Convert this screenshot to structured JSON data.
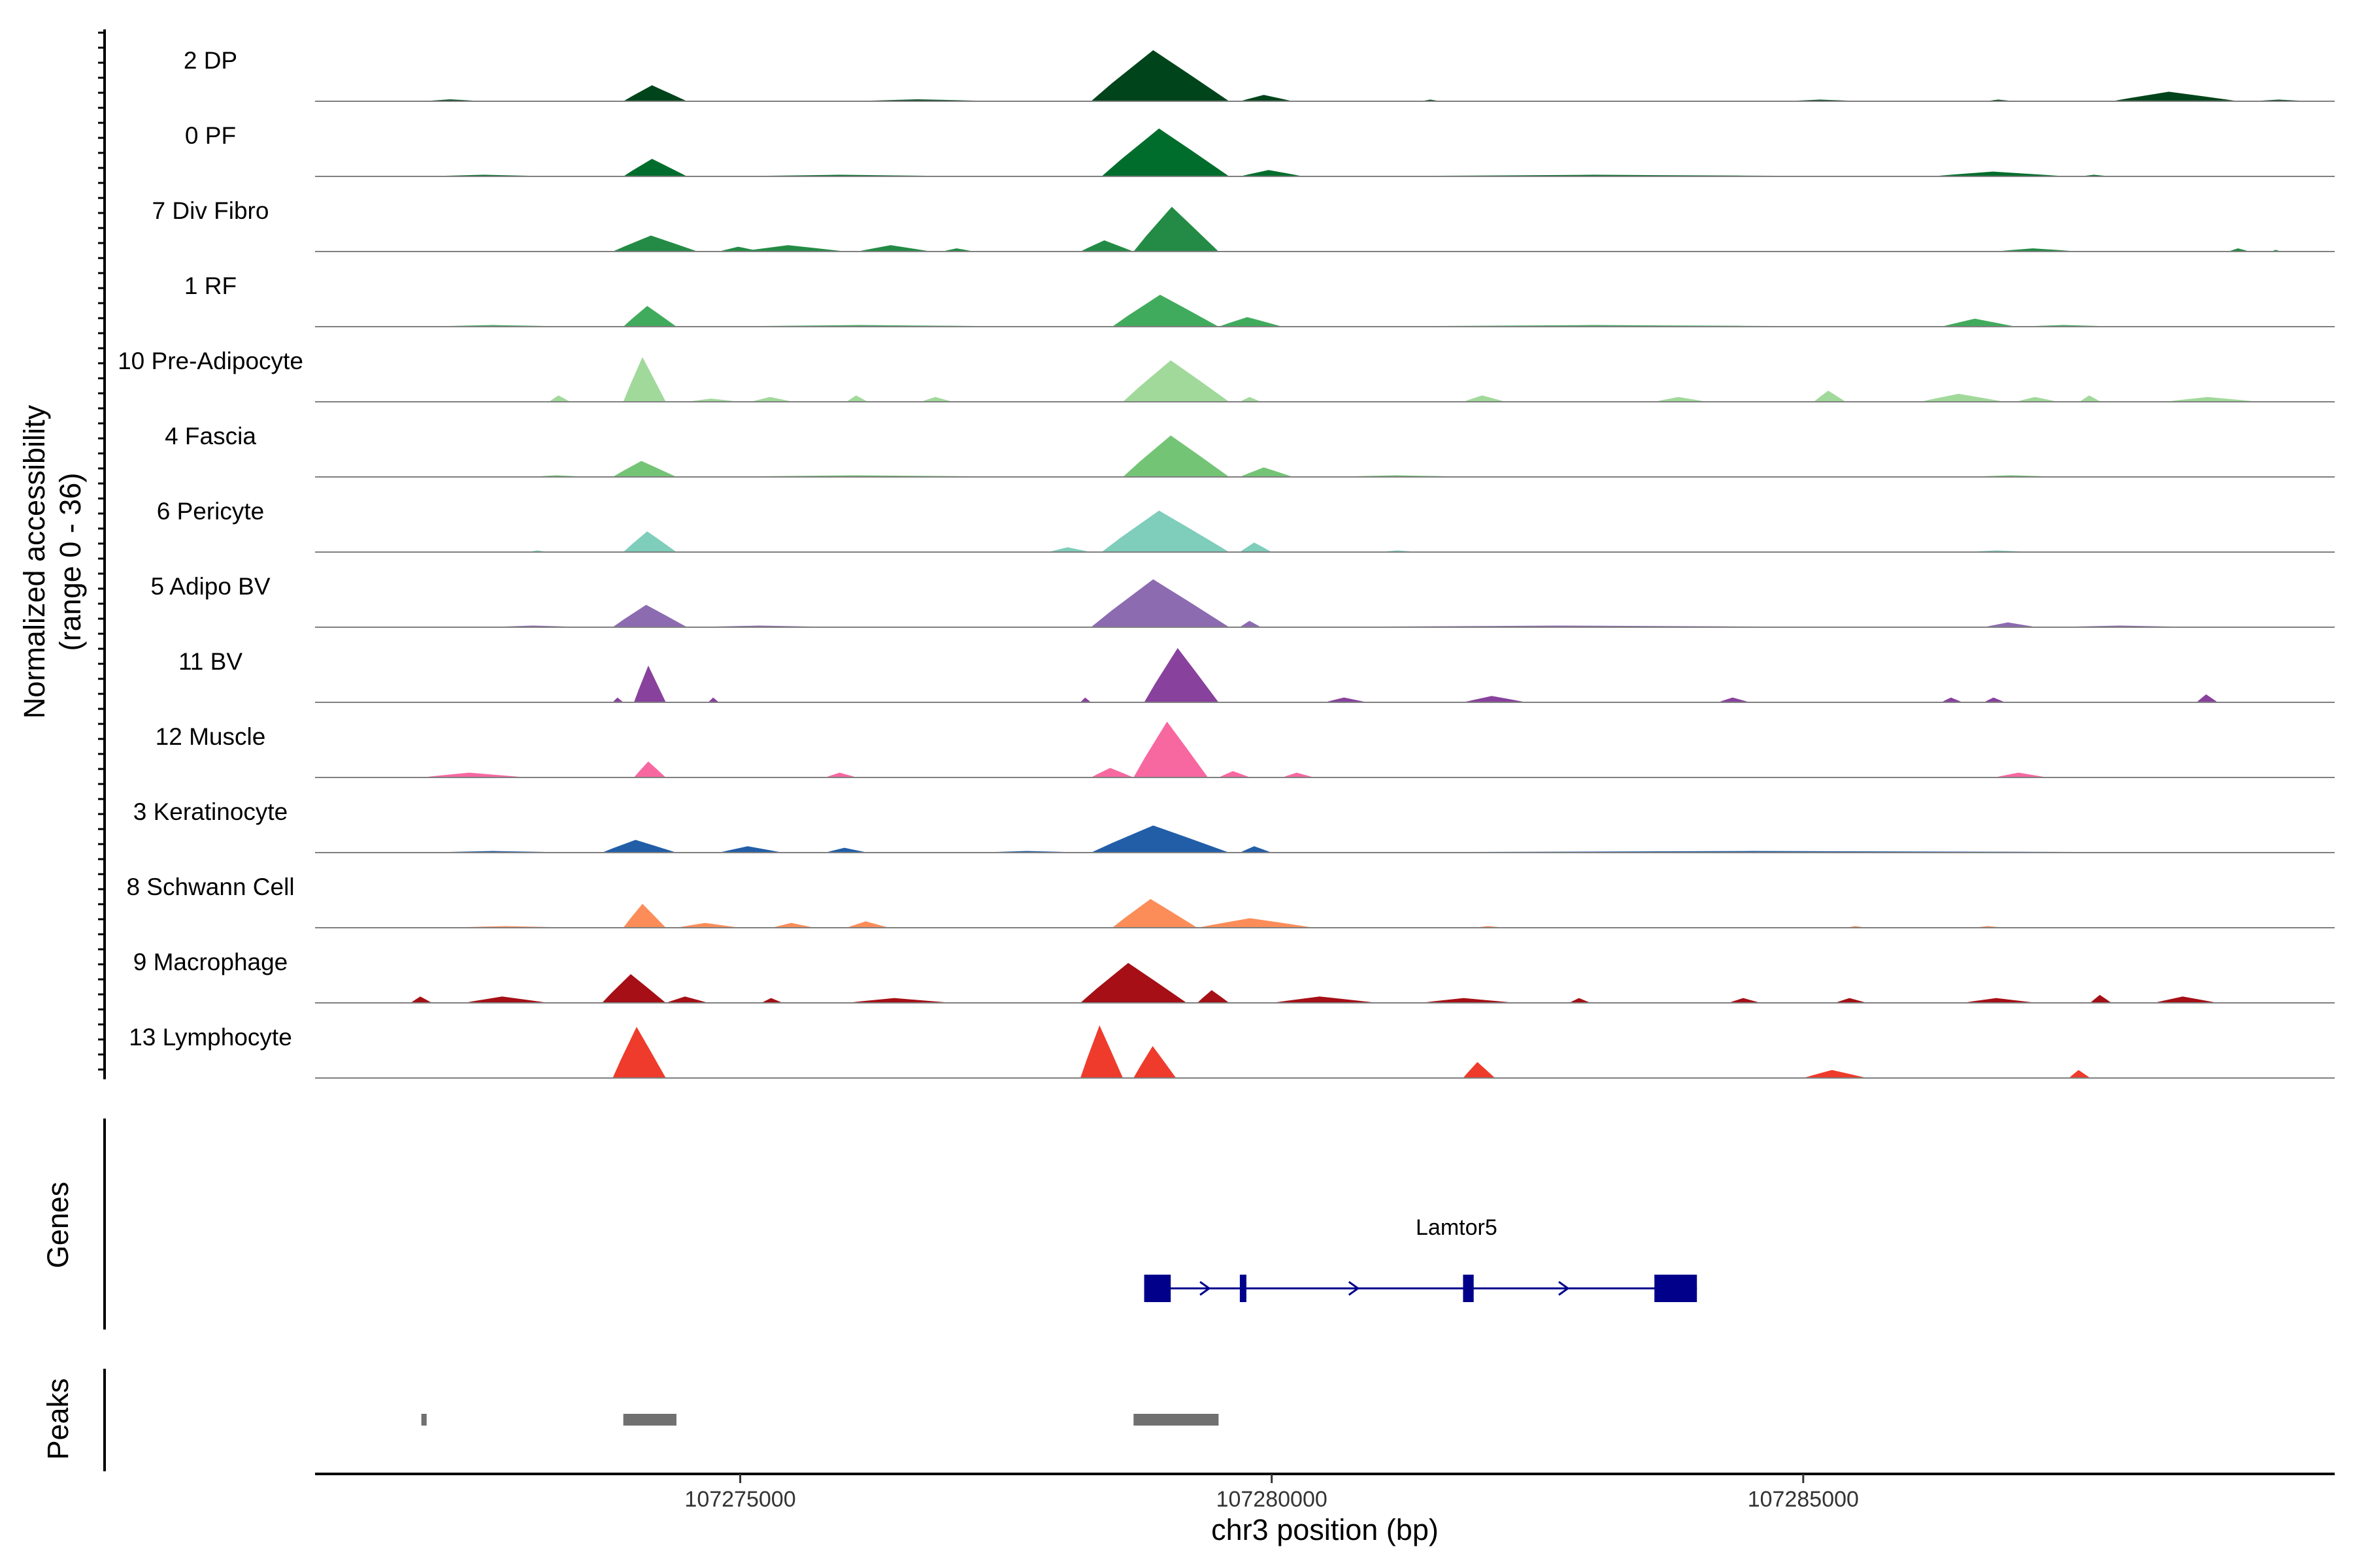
{
  "chart_data": {
    "type": "area",
    "ylabel": "Normalized accessibility",
    "ylabel_range": "(range 0 - 36)",
    "ylim": [
      0,
      36
    ],
    "xlabel": "chr3 position (bp)",
    "xlim": [
      107271000,
      107290000
    ],
    "xticks": [
      107275000,
      107280000,
      107285000
    ],
    "xtick_labels": [
      "107275000",
      "107280000",
      "107285000"
    ],
    "tracks": [
      {
        "name": "2 DP",
        "color": "#00441b",
        "peaks": [
          [
            107272000,
            107272600,
            1.2
          ],
          [
            107273900,
            107274500,
            10
          ],
          [
            107276000,
            107277500,
            1.2
          ],
          [
            107278300,
            107279600,
            32
          ],
          [
            107279700,
            107280200,
            4
          ],
          [
            107281400,
            107281600,
            1
          ],
          [
            107284800,
            107285600,
            1
          ],
          [
            107286700,
            107287000,
            1
          ],
          [
            107287900,
            107289100,
            6
          ],
          [
            107289200,
            107289800,
            1
          ]
        ]
      },
      {
        "name": "0 PF",
        "color": "#006d2c",
        "peaks": [
          [
            107272000,
            107273300,
            1
          ],
          [
            107273900,
            107274500,
            11
          ],
          [
            107274800,
            107277300,
            1
          ],
          [
            107278400,
            107279600,
            30
          ],
          [
            107279700,
            107280300,
            4
          ],
          [
            107280600,
            107286000,
            1
          ],
          [
            107286200,
            107287500,
            3
          ],
          [
            107287600,
            107287900,
            1
          ]
        ]
      },
      {
        "name": "7 Div Fibro",
        "color": "#238b45",
        "peaks": [
          [
            107273800,
            107274600,
            10
          ],
          [
            107274800,
            107275200,
            3
          ],
          [
            107275000,
            107276000,
            4
          ],
          [
            107276100,
            107276800,
            4
          ],
          [
            107276900,
            107277200,
            2
          ],
          [
            107278200,
            107278700,
            7
          ],
          [
            107278700,
            107279500,
            28
          ],
          [
            107286800,
            107287600,
            2
          ],
          [
            107289000,
            107289200,
            2
          ],
          [
            107289400,
            107289500,
            1
          ]
        ]
      },
      {
        "name": "1 RF",
        "color": "#41ab5d",
        "peaks": [
          [
            107272000,
            107273500,
            1
          ],
          [
            107273900,
            107274400,
            13
          ],
          [
            107274600,
            107278000,
            1
          ],
          [
            107278500,
            107279500,
            20
          ],
          [
            107279500,
            107280100,
            6
          ],
          [
            107280600,
            107286000,
            1
          ],
          [
            107286300,
            107287000,
            5
          ],
          [
            107287000,
            107288000,
            1
          ]
        ]
      },
      {
        "name": "10 Pre-Adipocyte",
        "color": "#a1d99b",
        "peaks": [
          [
            107273200,
            107273400,
            4
          ],
          [
            107273900,
            107274300,
            28
          ],
          [
            107274500,
            107275000,
            2
          ],
          [
            107275100,
            107275500,
            3
          ],
          [
            107276000,
            107276200,
            4
          ],
          [
            107276700,
            107277000,
            3
          ],
          [
            107278600,
            107279600,
            26
          ],
          [
            107279700,
            107279900,
            3
          ],
          [
            107281800,
            107282200,
            4
          ],
          [
            107283600,
            107284100,
            3
          ],
          [
            107285100,
            107285400,
            7
          ],
          [
            107286100,
            107286900,
            5
          ],
          [
            107287000,
            107287400,
            3
          ],
          [
            107287600,
            107287800,
            4
          ],
          [
            107288400,
            107289300,
            3
          ]
        ]
      },
      {
        "name": "4 Fascia",
        "color": "#74c476",
        "peaks": [
          [
            107273000,
            107273600,
            1
          ],
          [
            107273800,
            107274400,
            10
          ],
          [
            107274500,
            107278000,
            1
          ],
          [
            107278600,
            107279600,
            26
          ],
          [
            107279700,
            107280200,
            6
          ],
          [
            107280500,
            107282000,
            1
          ],
          [
            107286500,
            107287500,
            1
          ]
        ]
      },
      {
        "name": "6 Pericyte",
        "color": "#7fcdbb",
        "peaks": [
          [
            107273000,
            107273200,
            1
          ],
          [
            107273900,
            107274400,
            13
          ],
          [
            107277900,
            107278300,
            3
          ],
          [
            107278400,
            107279600,
            26
          ],
          [
            107279700,
            107280000,
            6
          ],
          [
            107281000,
            107281400,
            1
          ],
          [
            107286500,
            107287200,
            1
          ]
        ]
      },
      {
        "name": "5 Adipo BV",
        "color": "#8c6bb1",
        "peaks": [
          [
            107272600,
            107273600,
            1
          ],
          [
            107273800,
            107274500,
            14
          ],
          [
            107274500,
            107276000,
            1
          ],
          [
            107278300,
            107279600,
            30
          ],
          [
            107279700,
            107279900,
            4
          ],
          [
            107280000,
            107286000,
            1
          ],
          [
            107286700,
            107287200,
            3
          ],
          [
            107287300,
            107288800,
            1
          ]
        ]
      },
      {
        "name": "11 BV",
        "color": "#88419d",
        "peaks": [
          [
            107273800,
            107273900,
            3
          ],
          [
            107274000,
            107274300,
            23
          ],
          [
            107274700,
            107274800,
            3
          ],
          [
            107278200,
            107278300,
            3
          ],
          [
            107278800,
            107279500,
            34
          ],
          [
            107280500,
            107280900,
            3
          ],
          [
            107281800,
            107282400,
            4
          ],
          [
            107284200,
            107284500,
            3
          ],
          [
            107286300,
            107286500,
            3
          ],
          [
            107286700,
            107286900,
            3
          ],
          [
            107288700,
            107288900,
            5
          ]
        ]
      },
      {
        "name": "12 Muscle",
        "color": "#f768a1",
        "peaks": [
          [
            107272000,
            107273000,
            3
          ],
          [
            107274000,
            107274300,
            10
          ],
          [
            107275800,
            107276100,
            3
          ],
          [
            107278300,
            107278700,
            6
          ],
          [
            107278700,
            107279400,
            35
          ],
          [
            107279500,
            107279800,
            4
          ],
          [
            107280100,
            107280400,
            3
          ],
          [
            107286800,
            107287300,
            3
          ]
        ]
      },
      {
        "name": "3 Keratinocyte",
        "color": "#225ea8",
        "peaks": [
          [
            107272000,
            107273500,
            1
          ],
          [
            107273700,
            107274400,
            8
          ],
          [
            107274800,
            107275400,
            4
          ],
          [
            107275800,
            107276200,
            3
          ],
          [
            107277200,
            107278300,
            1
          ],
          [
            107278300,
            107279600,
            17
          ],
          [
            107279700,
            107280000,
            4
          ],
          [
            107280200,
            107289800,
            1
          ]
        ]
      },
      {
        "name": "8 Schwann Cell",
        "color": "#fc8d59",
        "peaks": [
          [
            107272200,
            107273500,
            1
          ],
          [
            107273900,
            107274300,
            15
          ],
          [
            107274400,
            107275000,
            3
          ],
          [
            107275300,
            107275700,
            3
          ],
          [
            107276000,
            107276400,
            4
          ],
          [
            107278500,
            107279300,
            18
          ],
          [
            107279300,
            107280400,
            6
          ],
          [
            107281900,
            107282200,
            1
          ],
          [
            107285400,
            107285600,
            1
          ],
          [
            107286600,
            107286900,
            1
          ]
        ]
      },
      {
        "name": "9 Macrophage",
        "color": "#a50f15",
        "peaks": [
          [
            107271900,
            107272100,
            4
          ],
          [
            107272400,
            107273200,
            4
          ],
          [
            107273700,
            107274300,
            18
          ],
          [
            107274300,
            107274700,
            4
          ],
          [
            107275200,
            107275400,
            3
          ],
          [
            107276000,
            107277000,
            3
          ],
          [
            107278200,
            107279200,
            25
          ],
          [
            107279300,
            107279600,
            8
          ],
          [
            107280000,
            107281000,
            4
          ],
          [
            107281400,
            107282300,
            3
          ],
          [
            107282800,
            107283000,
            3
          ],
          [
            107284300,
            107284600,
            3
          ],
          [
            107285300,
            107285600,
            3
          ],
          [
            107286500,
            107287200,
            3
          ],
          [
            107287700,
            107287900,
            5
          ],
          [
            107288300,
            107288900,
            4
          ]
        ]
      },
      {
        "name": "13 Lymphocyte",
        "color": "#ef3b2c",
        "peaks": [
          [
            107273800,
            107274300,
            32
          ],
          [
            107278200,
            107278600,
            33
          ],
          [
            107278700,
            107279100,
            20
          ],
          [
            107281800,
            107282100,
            10
          ],
          [
            107285000,
            107285600,
            5
          ],
          [
            107287500,
            107287700,
            5
          ]
        ]
      }
    ],
    "genes": [
      {
        "name": "Lamtor5",
        "strand": "+",
        "start": 107278800,
        "end": 107284000,
        "exons": [
          [
            107278800,
            107279050
          ],
          [
            107279700,
            107279750
          ],
          [
            107281800,
            107281900
          ],
          [
            107283600,
            107284000
          ]
        ]
      }
    ],
    "peaks_track": [
      [
        107272000,
        107272050
      ],
      [
        107273900,
        107274400
      ],
      [
        107278700,
        107279500
      ]
    ],
    "panel_labels": {
      "genes": "Genes",
      "peaks": "Peaks"
    }
  }
}
